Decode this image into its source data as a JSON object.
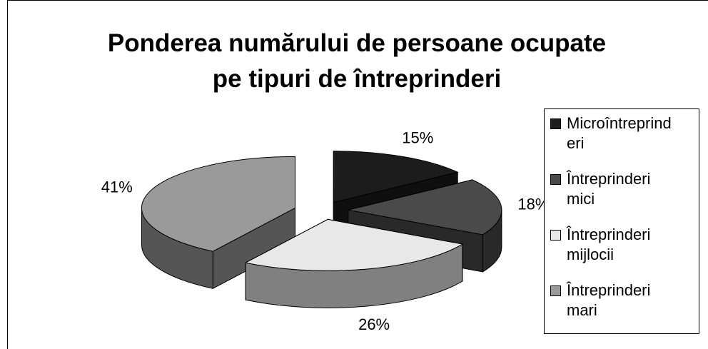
{
  "chart_data": {
    "type": "pie",
    "title": "Ponderea numărului de persoane ocupate pe tipuri de întreprinderi",
    "categories": [
      "Microîntreprinderi",
      "Întreprinderi mici",
      "Întreprinderi mijlocii",
      "Întreprinderi mari"
    ],
    "values": [
      15,
      18,
      26,
      41
    ],
    "value_labels": [
      "15%",
      "18%",
      "26%",
      "41%"
    ],
    "colors": [
      "#1c1c1c",
      "#4a4a4a",
      "#e8e8e8",
      "#9a9a9a"
    ],
    "legend": "right"
  }
}
